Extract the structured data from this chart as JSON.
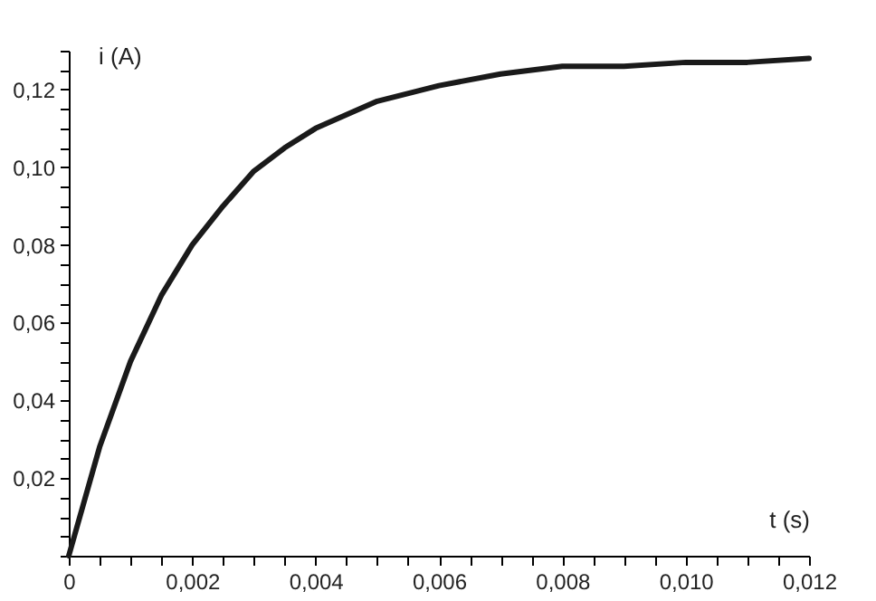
{
  "chart_data": {
    "type": "line",
    "xlabel": "t (s)",
    "ylabel": "i (A)",
    "x": [
      0,
      0.0005,
      0.001,
      0.0015,
      0.002,
      0.0025,
      0.003,
      0.0035,
      0.004,
      0.005,
      0.006,
      0.007,
      0.008,
      0.009,
      0.01,
      0.011,
      0.012
    ],
    "series": [
      {
        "color": "#1a1a1a",
        "values": [
          0,
          0.028,
          0.05,
          0.067,
          0.08,
          0.09,
          0.099,
          0.105,
          0.11,
          0.117,
          0.121,
          0.124,
          0.126,
          0.126,
          0.127,
          0.127,
          0.128
        ]
      }
    ],
    "xlim": [
      0,
      0.012
    ],
    "xticks": [
      {
        "value": 0,
        "label": "0"
      },
      {
        "value": 0.0005,
        "label": null
      },
      {
        "value": 0.001,
        "label": null
      },
      {
        "value": 0.0015,
        "label": null
      },
      {
        "value": 0.002,
        "label": "0,002"
      },
      {
        "value": 0.0025,
        "label": null
      },
      {
        "value": 0.003,
        "label": null
      },
      {
        "value": 0.0035,
        "label": null
      },
      {
        "value": 0.004,
        "label": "0,004"
      },
      {
        "value": 0.0045,
        "label": null
      },
      {
        "value": 0.005,
        "label": null
      },
      {
        "value": 0.0055,
        "label": null
      },
      {
        "value": 0.006,
        "label": "0,006"
      },
      {
        "value": 0.0065,
        "label": null
      },
      {
        "value": 0.007,
        "label": null
      },
      {
        "value": 0.0075,
        "label": null
      },
      {
        "value": 0.008,
        "label": "0,008"
      },
      {
        "value": 0.0085,
        "label": null
      },
      {
        "value": 0.009,
        "label": null
      },
      {
        "value": 0.0095,
        "label": null
      },
      {
        "value": 0.01,
        "label": "0,010"
      },
      {
        "value": 0.0105,
        "label": null
      },
      {
        "value": 0.011,
        "label": null
      },
      {
        "value": 0.0115,
        "label": null
      },
      {
        "value": 0.012,
        "label": "0,012"
      }
    ],
    "ylim": [
      0,
      0.13
    ],
    "yticks": [
      {
        "value": 0,
        "label": null
      },
      {
        "value": 0.005,
        "label": null
      },
      {
        "value": 0.01,
        "label": null
      },
      {
        "value": 0.015,
        "label": null
      },
      {
        "value": 0.02,
        "label": "0,02"
      },
      {
        "value": 0.025,
        "label": null
      },
      {
        "value": 0.03,
        "label": null
      },
      {
        "value": 0.035,
        "label": null
      },
      {
        "value": 0.04,
        "label": "0,04"
      },
      {
        "value": 0.045,
        "label": null
      },
      {
        "value": 0.05,
        "label": null
      },
      {
        "value": 0.055,
        "label": null
      },
      {
        "value": 0.06,
        "label": "0,06"
      },
      {
        "value": 0.065,
        "label": null
      },
      {
        "value": 0.07,
        "label": null
      },
      {
        "value": 0.075,
        "label": null
      },
      {
        "value": 0.08,
        "label": "0,08"
      },
      {
        "value": 0.085,
        "label": null
      },
      {
        "value": 0.09,
        "label": null
      },
      {
        "value": 0.095,
        "label": null
      },
      {
        "value": 0.1,
        "label": "0,10"
      },
      {
        "value": 0.105,
        "label": null
      },
      {
        "value": 0.11,
        "label": null
      },
      {
        "value": 0.115,
        "label": null
      },
      {
        "value": 0.12,
        "label": "0,12"
      },
      {
        "value": 0.125,
        "label": null
      },
      {
        "value": 0.13,
        "label": null
      }
    ],
    "grid": false,
    "marker": "none",
    "line_style": "solid"
  }
}
